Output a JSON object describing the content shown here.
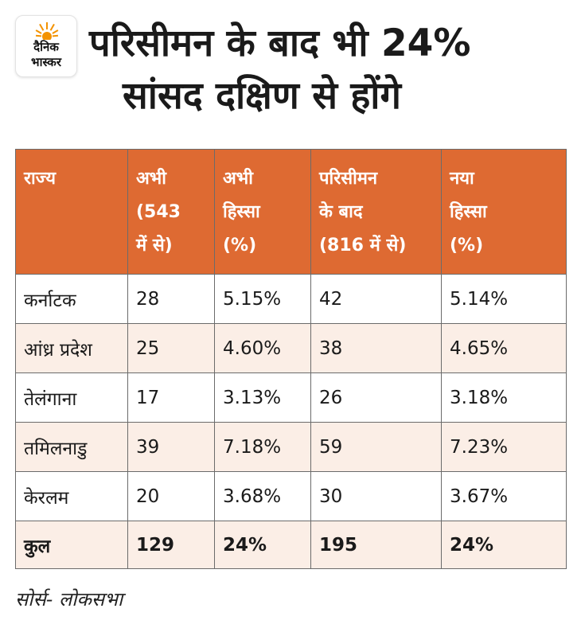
{
  "brand": {
    "logo_line1": "दैनिक",
    "logo_line2": "भास्कर",
    "accent_color": "#f39200"
  },
  "title": {
    "line1": "परिसीमन के बाद भी 24%",
    "line2": "सांसद दक्षिण से होंगे"
  },
  "table": {
    "header_color": "#de6a32",
    "stripe_color": "#fbeee6",
    "columns": [
      {
        "lines": [
          "राज्य"
        ]
      },
      {
        "lines": [
          "अभी",
          "(543",
          "में से)"
        ]
      },
      {
        "lines": [
          "अभी",
          "हिस्सा",
          "(%)"
        ]
      },
      {
        "lines": [
          "परिसीमन",
          "के बाद",
          "(816 में से)"
        ]
      },
      {
        "lines": [
          "नया",
          "हिस्सा",
          "(%)"
        ]
      }
    ],
    "rows": [
      [
        "कर्नाटक",
        "28",
        "5.15%",
        "42",
        "5.14%"
      ],
      [
        "आंध्र प्रदेश",
        "25",
        "4.60%",
        "38",
        "4.65%"
      ],
      [
        "तेलंगाना",
        "17",
        "3.13%",
        "26",
        "3.18%"
      ],
      [
        "तमिलनाडु",
        "39",
        "7.18%",
        "59",
        "7.23%"
      ],
      [
        "केरलम",
        "20",
        "3.68%",
        "30",
        "3.67%"
      ]
    ],
    "total": [
      "कुल",
      "129",
      "24%",
      "195",
      "24%"
    ]
  },
  "source": "सोर्स- लोकसभा"
}
